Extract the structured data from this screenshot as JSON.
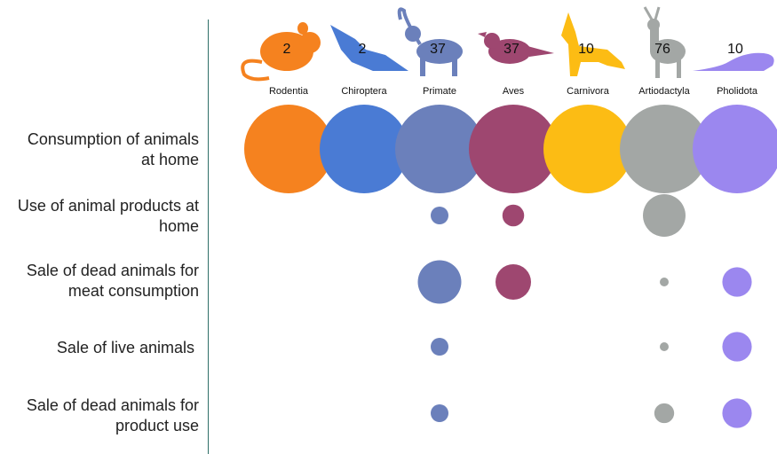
{
  "chart_data": {
    "type": "bubble-matrix",
    "taxa": [
      {
        "name": "Rodentia",
        "count": "2",
        "color": "#f5821f",
        "icon": "rat-icon"
      },
      {
        "name": "Chiroptera",
        "count": "2",
        "color": "#4a7bd4",
        "icon": "bat-icon"
      },
      {
        "name": "Primate",
        "count": "37",
        "color": "#6b80bb",
        "icon": "monkey-icon"
      },
      {
        "name": "Aves",
        "count": "37",
        "color": "#9e4770",
        "icon": "bird-icon"
      },
      {
        "name": "Carnivora",
        "count": "10",
        "color": "#fcbc14",
        "icon": "wolf-icon"
      },
      {
        "name": "Artiodactyla",
        "count": "76",
        "color": "#a3a7a5",
        "icon": "deer-icon"
      },
      {
        "name": "Pholidota",
        "count": "10",
        "color": "#9b87ef",
        "icon": "pangolin-icon"
      }
    ],
    "uses": [
      "Consumption of animals at home",
      "Use of animal products at home",
      "Sale of dead animals for meat consumption",
      "Sale of live animals ",
      "Sale of dead animals for product use"
    ],
    "values": [
      [
        100,
        100,
        100,
        100,
        100,
        100,
        100
      ],
      [
        0,
        0,
        4,
        6,
        0,
        23,
        0
      ],
      [
        0,
        0,
        24,
        16,
        0,
        1,
        11
      ],
      [
        0,
        0,
        4,
        0,
        0,
        1,
        11
      ],
      [
        0,
        0,
        4,
        0,
        0,
        5,
        11
      ]
    ]
  },
  "row_labels": [
    "Consumption of animals\nat home",
    "Use of animal products at\nhome",
    "Sale of dead animals for\nmeat consumption",
    "Sale of live animals ",
    "Sale of dead animals for\nproduct use"
  ]
}
